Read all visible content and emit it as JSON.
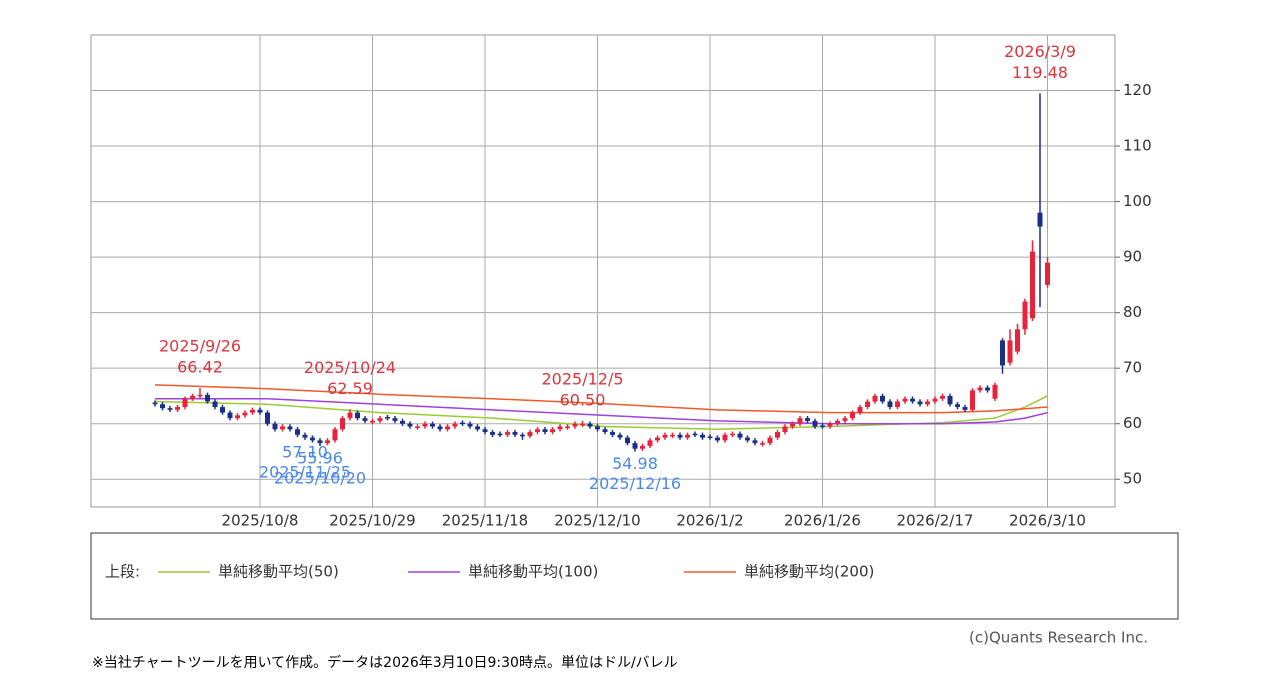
{
  "chart_data": {
    "type": "candlestick",
    "ylim": [
      45,
      130
    ],
    "yticks": [
      50,
      60,
      70,
      80,
      90,
      100,
      110,
      120
    ],
    "grid": true,
    "up_color": "#e8223a",
    "down_color": "#1a2f8a",
    "categories": [
      null,
      null,
      null,
      null,
      null,
      null,
      null,
      null,
      null,
      null,
      null,
      null,
      null,
      null,
      "2025/10/8",
      null,
      null,
      null,
      null,
      null,
      null,
      null,
      null,
      null,
      null,
      null,
      null,
      null,
      null,
      "2025/10/29",
      null,
      null,
      null,
      null,
      null,
      null,
      null,
      null,
      null,
      null,
      null,
      null,
      null,
      null,
      "2025/11/18",
      null,
      null,
      null,
      null,
      null,
      null,
      null,
      null,
      null,
      null,
      null,
      null,
      null,
      null,
      "2025/12/10",
      null,
      null,
      null,
      null,
      null,
      null,
      null,
      null,
      null,
      null,
      null,
      null,
      null,
      null,
      "2026/1/2",
      null,
      null,
      null,
      null,
      null,
      null,
      null,
      null,
      null,
      null,
      null,
      null,
      null,
      null,
      "2026/1/26",
      null,
      null,
      null,
      null,
      null,
      null,
      null,
      null,
      null,
      null,
      null,
      null,
      null,
      null,
      "2026/2/17",
      null,
      null,
      null,
      null,
      null,
      null,
      null,
      null,
      null,
      null,
      null,
      null,
      null,
      null,
      "2026/3/10"
    ],
    "ohlc": [
      [
        63.8,
        64.2,
        63.1,
        63.5
      ],
      [
        63.5,
        63.9,
        62.4,
        62.8
      ],
      [
        62.8,
        63.2,
        62.1,
        62.5
      ],
      [
        62.5,
        63.4,
        62.1,
        63.0
      ],
      [
        63.0,
        64.9,
        62.6,
        64.5
      ],
      [
        64.5,
        65.4,
        64.1,
        65.0
      ],
      [
        65.0,
        66.42,
        64.6,
        65.2
      ],
      [
        65.2,
        65.6,
        63.6,
        64.0
      ],
      [
        64.0,
        64.4,
        62.6,
        63.0
      ],
      [
        63.0,
        63.4,
        61.6,
        62.0
      ],
      [
        62.0,
        62.4,
        60.6,
        61.0
      ],
      [
        61.0,
        61.9,
        60.6,
        61.5
      ],
      [
        61.5,
        62.4,
        61.1,
        62.0
      ],
      [
        62.0,
        62.9,
        61.6,
        62.5
      ],
      [
        62.5,
        62.9,
        61.6,
        62.0
      ],
      [
        62.0,
        62.4,
        59.6,
        60.0
      ],
      [
        60.0,
        60.4,
        58.6,
        59.0
      ],
      [
        59.0,
        59.9,
        58.6,
        59.5
      ],
      [
        59.5,
        59.9,
        58.6,
        59.0
      ],
      [
        59.0,
        59.4,
        57.6,
        58.0
      ],
      [
        58.0,
        58.4,
        57.1,
        57.5
      ],
      [
        57.5,
        57.9,
        56.6,
        57.0
      ],
      [
        57.0,
        57.4,
        55.96,
        56.5
      ],
      [
        56.5,
        57.4,
        56.1,
        57.0
      ],
      [
        57.0,
        59.4,
        56.6,
        59.0
      ],
      [
        59.0,
        61.4,
        58.6,
        61.0
      ],
      [
        61.0,
        62.59,
        60.6,
        62.0
      ],
      [
        62.0,
        62.4,
        60.6,
        61.0
      ],
      [
        61.0,
        61.4,
        60.1,
        60.5
      ],
      [
        60.3,
        60.9,
        59.9,
        60.5
      ],
      [
        60.5,
        61.4,
        60.1,
        61.0
      ],
      [
        61.2,
        61.6,
        60.6,
        61.0
      ],
      [
        61.0,
        61.4,
        60.1,
        60.5
      ],
      [
        60.5,
        60.9,
        59.6,
        60.0
      ],
      [
        60.0,
        60.4,
        59.1,
        59.5
      ],
      [
        59.3,
        59.9,
        58.9,
        59.5
      ],
      [
        59.5,
        60.4,
        59.1,
        60.0
      ],
      [
        60.0,
        60.4,
        59.1,
        59.5
      ],
      [
        59.5,
        59.9,
        58.6,
        59.0
      ],
      [
        59.0,
        59.9,
        58.6,
        59.5
      ],
      [
        59.5,
        60.4,
        59.1,
        60.0
      ],
      [
        60.2,
        60.6,
        59.6,
        60.0
      ],
      [
        60.0,
        60.4,
        59.1,
        59.5
      ],
      [
        59.5,
        59.9,
        58.6,
        59.0
      ],
      [
        59.0,
        59.4,
        58.1,
        58.5
      ],
      [
        58.5,
        58.9,
        57.6,
        58.0
      ],
      [
        58.2,
        58.6,
        57.6,
        58.0
      ],
      [
        58.0,
        58.9,
        57.6,
        58.5
      ],
      [
        58.5,
        58.9,
        57.6,
        58.0
      ],
      [
        58.0,
        58.4,
        57.1,
        57.8
      ],
      [
        57.8,
        58.9,
        57.4,
        58.5
      ],
      [
        58.5,
        59.4,
        58.1,
        59.0
      ],
      [
        59.0,
        59.4,
        58.1,
        58.5
      ],
      [
        58.5,
        59.4,
        58.1,
        59.0
      ],
      [
        59.0,
        59.9,
        58.6,
        59.5
      ],
      [
        59.3,
        59.9,
        58.9,
        59.5
      ],
      [
        59.5,
        60.4,
        59.1,
        60.0
      ],
      [
        59.8,
        60.5,
        59.4,
        60.0
      ],
      [
        60.0,
        60.4,
        59.1,
        59.5
      ],
      [
        59.5,
        59.9,
        58.6,
        59.0
      ],
      [
        59.0,
        59.4,
        58.1,
        58.5
      ],
      [
        58.5,
        58.9,
        57.6,
        58.0
      ],
      [
        58.0,
        58.4,
        57.1,
        57.5
      ],
      [
        57.5,
        57.9,
        56.1,
        56.5
      ],
      [
        56.5,
        56.9,
        54.98,
        55.5
      ],
      [
        55.5,
        56.4,
        55.1,
        56.0
      ],
      [
        56.0,
        57.4,
        55.6,
        57.0
      ],
      [
        57.0,
        57.9,
        56.6,
        57.5
      ],
      [
        57.5,
        58.4,
        57.1,
        58.0
      ],
      [
        57.8,
        58.4,
        57.4,
        58.0
      ],
      [
        58.0,
        58.4,
        57.1,
        57.5
      ],
      [
        57.5,
        58.4,
        57.1,
        58.0
      ],
      [
        58.2,
        58.6,
        57.6,
        58.0
      ],
      [
        58.0,
        58.4,
        57.1,
        57.5
      ],
      [
        57.7,
        58.1,
        57.1,
        57.5
      ],
      [
        57.5,
        57.9,
        56.6,
        57.0
      ],
      [
        57.0,
        58.4,
        56.6,
        58.0
      ],
      [
        58.0,
        58.6,
        57.6,
        58.2
      ],
      [
        58.2,
        58.6,
        57.1,
        57.5
      ],
      [
        57.5,
        57.9,
        56.6,
        57.0
      ],
      [
        57.0,
        57.4,
        56.1,
        56.5
      ],
      [
        56.3,
        56.9,
        55.9,
        56.5
      ],
      [
        56.5,
        57.9,
        56.1,
        57.5
      ],
      [
        57.5,
        58.9,
        57.1,
        58.5
      ],
      [
        58.5,
        59.9,
        58.1,
        59.5
      ],
      [
        59.5,
        60.4,
        59.1,
        60.0
      ],
      [
        60.0,
        61.4,
        59.6,
        61.0
      ],
      [
        61.0,
        61.4,
        60.1,
        60.5
      ],
      [
        60.5,
        60.9,
        59.1,
        59.5
      ],
      [
        59.7,
        60.1,
        59.1,
        59.5
      ],
      [
        59.5,
        60.4,
        59.1,
        60.0
      ],
      [
        60.0,
        60.9,
        59.6,
        60.5
      ],
      [
        60.5,
        61.4,
        60.1,
        61.0
      ],
      [
        61.0,
        62.4,
        60.6,
        62.0
      ],
      [
        62.0,
        63.4,
        61.6,
        63.0
      ],
      [
        63.0,
        64.4,
        62.6,
        64.0
      ],
      [
        64.0,
        65.4,
        63.6,
        65.0
      ],
      [
        65.0,
        65.4,
        63.6,
        64.0
      ],
      [
        64.0,
        64.4,
        62.6,
        63.0
      ],
      [
        63.0,
        64.4,
        62.6,
        64.0
      ],
      [
        64.0,
        64.9,
        63.6,
        64.5
      ],
      [
        64.5,
        64.9,
        63.6,
        64.0
      ],
      [
        64.0,
        64.4,
        63.1,
        63.5
      ],
      [
        63.5,
        64.4,
        63.1,
        64.0
      ],
      [
        64.0,
        64.9,
        63.6,
        64.5
      ],
      [
        64.5,
        65.4,
        64.1,
        65.0
      ],
      [
        65.0,
        65.4,
        63.1,
        63.5
      ],
      [
        63.5,
        63.9,
        62.6,
        63.0
      ],
      [
        63.0,
        63.4,
        62.1,
        62.5
      ],
      [
        62.5,
        66.4,
        62.1,
        66.0
      ],
      [
        66.0,
        66.9,
        65.6,
        66.5
      ],
      [
        66.5,
        66.9,
        65.6,
        66.0
      ],
      [
        64.5,
        67.4,
        64.1,
        67.0
      ],
      [
        75.0,
        75.4,
        69.0,
        70.5
      ],
      [
        71.0,
        77.0,
        70.5,
        75.0
      ],
      [
        73.0,
        78.0,
        72.5,
        77.0
      ],
      [
        77.0,
        82.5,
        76.0,
        82.0
      ],
      [
        79.0,
        93.0,
        78.5,
        91.0
      ],
      [
        98.0,
        119.48,
        81.0,
        95.5
      ],
      [
        85.0,
        90.0,
        84.5,
        89.0
      ]
    ],
    "series": [
      {
        "name": "単純移動平均(50)",
        "color": "#9acd32",
        "x": [
          0,
          15,
          30,
          45,
          60,
          75,
          90,
          105,
          112,
          116,
          119
        ],
        "values": [
          64.0,
          63.5,
          62.0,
          61.0,
          59.5,
          59.0,
          59.5,
          60.2,
          61.0,
          63.0,
          65.0
        ]
      },
      {
        "name": "単純移動平均(100)",
        "color": "#a040e0",
        "x": [
          0,
          15,
          30,
          45,
          60,
          75,
          90,
          105,
          112,
          116,
          119
        ],
        "values": [
          64.5,
          64.5,
          63.5,
          62.5,
          61.5,
          60.5,
          60.0,
          60.0,
          60.3,
          61.0,
          62.0
        ]
      },
      {
        "name": "単純移動平均(200)",
        "color": "#f05a28",
        "x": [
          0,
          15,
          30,
          45,
          60,
          75,
          90,
          105,
          112,
          116,
          119
        ],
        "values": [
          67.0,
          66.3,
          65.3,
          64.5,
          63.6,
          62.5,
          62.0,
          62.0,
          62.3,
          62.7,
          63.0
        ]
      }
    ],
    "legend_title": "上段:",
    "annotations": [
      {
        "date": "2025/9/26",
        "value": 66.42
      },
      {
        "date": "2025/10/20",
        "value": 55.96
      },
      {
        "date": "2025/10/24",
        "value": 62.59
      },
      {
        "date": "2025/11/25",
        "value": 57.1,
        "label": "57.10"
      },
      {
        "date": "2025/12/5",
        "value": 60.5,
        "label": "60.50"
      },
      {
        "date": "2025/12/16",
        "value": 54.98
      },
      {
        "date": "2026/3/9",
        "value": 119.48
      }
    ],
    "copyright": "(c)Quants Research Inc.",
    "note": "※当社チャートツールを用いて作成。データは2026年3月10日9:30時点。単位はドル/バレル"
  }
}
